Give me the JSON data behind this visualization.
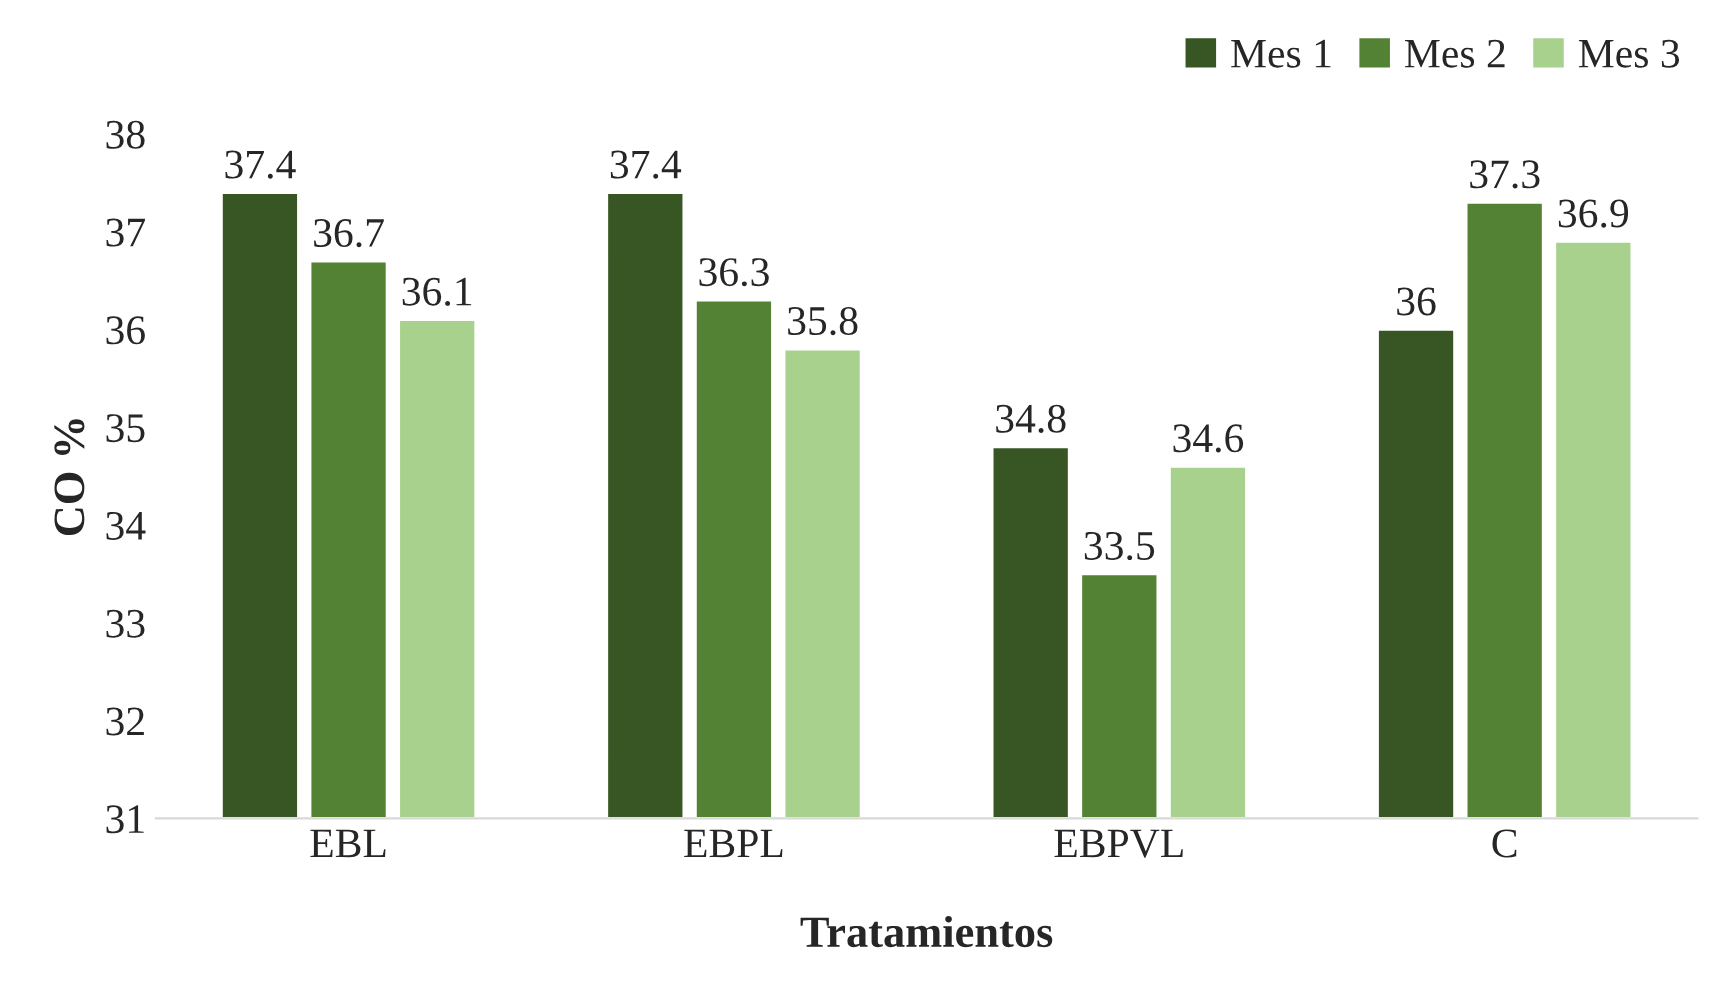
{
  "chart_data": {
    "type": "bar",
    "xlabel": "Tratamientos",
    "ylabel": "CO %",
    "categories": [
      "EBL",
      "EBPL",
      "EBPVL",
      "C"
    ],
    "series": [
      {
        "name": "Mes 1",
        "color": "#375623",
        "values": [
          37.4,
          37.4,
          34.8,
          36
        ]
      },
      {
        "name": "Mes 2",
        "color": "#548235",
        "values": [
          36.7,
          36.3,
          33.5,
          37.3
        ]
      },
      {
        "name": "Mes 3",
        "color": "#a9d18e",
        "values": [
          36.1,
          35.8,
          34.6,
          36.9
        ]
      }
    ],
    "ylim": [
      31,
      38
    ],
    "yticks": [
      31,
      32,
      33,
      34,
      35,
      36,
      37,
      38
    ],
    "data_labels": true,
    "legend": "top right",
    "grid": false
  }
}
